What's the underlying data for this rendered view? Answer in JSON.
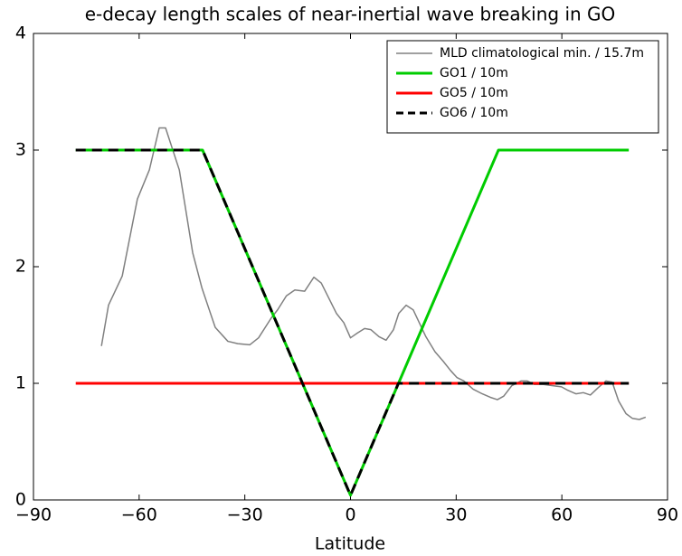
{
  "chart_data": {
    "type": "line",
    "title": "e-decay length scales of near-inertial wave breaking in GO",
    "x_label": "Latitude",
    "xlim": [
      -90,
      90
    ],
    "ylim": [
      0,
      4
    ],
    "xticks": [
      {
        "value": -90,
        "label": "−90"
      },
      {
        "value": -60,
        "label": "−60"
      },
      {
        "value": -30,
        "label": "−30"
      },
      0,
      30,
      60,
      90
    ],
    "yticks": [
      0,
      1,
      2,
      3,
      4
    ],
    "legend": "upper right",
    "series": [
      {
        "name": "MLD climatological min. / 15.7m",
        "color": "#808080",
        "width": 1.5,
        "dashed": false,
        "x": [
          -70.7,
          -68.7,
          -64.8,
          -60.5,
          -57.1,
          -54.3,
          -52.5,
          -48.6,
          -44.8,
          -42.2,
          -40.2,
          -38.4,
          -34.8,
          -32.0,
          -28.6,
          -26.1,
          -22.5,
          -20.7,
          -18.2,
          -15.8,
          -13.0,
          -10.4,
          -8.3,
          -4.0,
          -1.9,
          0,
          1.9,
          4.0,
          5.8,
          8.1,
          10.1,
          12.2,
          13.7,
          15.8,
          17.8,
          21.4,
          24.0,
          26.3,
          28.4,
          30.2,
          32.2,
          34.8,
          37.4,
          39.7,
          41.7,
          43.5,
          45.8,
          48.4,
          50.2,
          52.2,
          54.8,
          57.4,
          59.9,
          61.7,
          64.0,
          66.1,
          68.1,
          70.2,
          72.5,
          74.3,
          76.1,
          78.2,
          80.0,
          82.0,
          83.8
        ],
        "values": [
          1.32,
          1.67,
          1.92,
          2.58,
          2.83,
          3.19,
          3.19,
          2.83,
          2.12,
          1.82,
          1.64,
          1.48,
          1.36,
          1.34,
          1.33,
          1.39,
          1.56,
          1.63,
          1.75,
          1.8,
          1.79,
          1.91,
          1.86,
          1.6,
          1.52,
          1.39,
          1.43,
          1.47,
          1.46,
          1.4,
          1.37,
          1.46,
          1.6,
          1.67,
          1.63,
          1.4,
          1.27,
          1.19,
          1.11,
          1.05,
          1.02,
          0.95,
          0.91,
          0.88,
          0.86,
          0.89,
          0.98,
          1.02,
          1.02,
          0.99,
          0.99,
          0.98,
          0.97,
          0.94,
          0.91,
          0.92,
          0.9,
          0.96,
          1.02,
          1.01,
          0.85,
          0.74,
          0.7,
          0.69,
          0.71
        ]
      },
      {
        "name": "GO1 / 10m",
        "color": "#00cc00",
        "width": 3,
        "dashed": false,
        "x": [
          -78,
          -42,
          0,
          42,
          79
        ],
        "values": [
          3,
          3,
          0.04,
          3,
          3
        ]
      },
      {
        "name": "GO5 / 10m",
        "color": "#ff0000",
        "width": 3,
        "dashed": false,
        "x": [
          -78,
          79
        ],
        "values": [
          1,
          1
        ]
      },
      {
        "name": "GO6 / 10m",
        "color": "#000000",
        "width": 3,
        "dashed": true,
        "x": [
          -78,
          -42,
          0,
          13.6,
          79
        ],
        "values": [
          3,
          3,
          0.04,
          1,
          1
        ]
      }
    ]
  }
}
